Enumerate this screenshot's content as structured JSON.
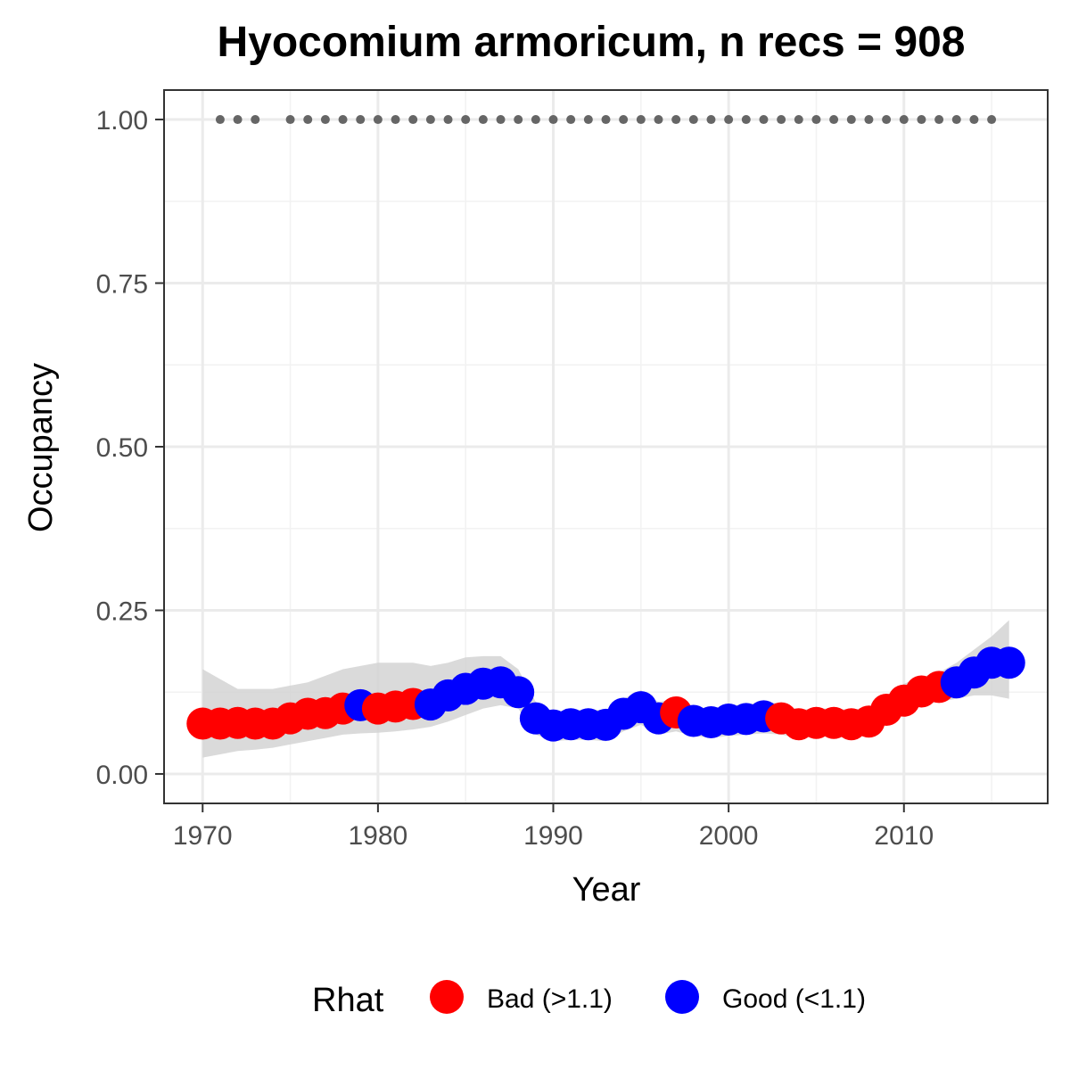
{
  "chart_data": {
    "type": "line",
    "title": "Hyocomium armoricum, n recs = 908",
    "xlabel": "Year",
    "ylabel": "Occupancy",
    "xlim": [
      1967.8,
      2018.2
    ],
    "ylim": [
      -0.045,
      1.045
    ],
    "x_ticks": [
      1970,
      1980,
      1990,
      2000,
      2010
    ],
    "x_tick_labels": [
      "1970",
      "1980",
      "1990",
      "2000",
      "2010"
    ],
    "y_ticks": [
      0,
      0.25,
      0.5,
      0.75,
      1.0
    ],
    "y_tick_labels": [
      "0.00",
      "0.25",
      "0.50",
      "0.75",
      "1.00"
    ],
    "grid": true,
    "legend": {
      "title": "Rhat",
      "position": "bottom",
      "entries": [
        {
          "label": "Bad (>1.1)",
          "color": "#ff0000"
        },
        {
          "label": "Good (<1.1)",
          "color": "#0000ff"
        }
      ]
    },
    "colors": {
      "Bad": "#ff0000",
      "Good": "#0000ff",
      "ribbon": "#d3d3d3",
      "record_dots": "#666666"
    },
    "series": [
      {
        "x": [
          1970,
          1971,
          1972,
          1973,
          1974,
          1975,
          1976,
          1977,
          1978,
          1979,
          1980,
          1981,
          1982,
          1983,
          1984,
          1985,
          1986,
          1987,
          1988,
          1989,
          1990,
          1991,
          1992,
          1993,
          1994,
          1995,
          1996,
          1997,
          1998,
          1999,
          2000,
          2001,
          2002,
          2003,
          2004,
          2005,
          2006,
          2007,
          2008,
          2009,
          2010,
          2011,
          2012,
          2013,
          2014,
          2015,
          2016
        ],
        "values": [
          0.077,
          0.077,
          0.078,
          0.077,
          0.077,
          0.085,
          0.092,
          0.093,
          0.1,
          0.105,
          0.1,
          0.103,
          0.107,
          0.106,
          0.12,
          0.13,
          0.138,
          0.14,
          0.125,
          0.085,
          0.074,
          0.076,
          0.076,
          0.075,
          0.092,
          0.102,
          0.085,
          0.094,
          0.081,
          0.079,
          0.083,
          0.084,
          0.088,
          0.085,
          0.076,
          0.078,
          0.078,
          0.076,
          0.08,
          0.098,
          0.112,
          0.126,
          0.133,
          0.14,
          0.155,
          0.17,
          0.17
        ],
        "rhat": [
          "Bad",
          "Bad",
          "Bad",
          "Bad",
          "Bad",
          "Bad",
          "Bad",
          "Bad",
          "Bad",
          "Good",
          "Bad",
          "Bad",
          "Bad",
          "Good",
          "Good",
          "Good",
          "Good",
          "Good",
          "Good",
          "Good",
          "Good",
          "Good",
          "Good",
          "Good",
          "Good",
          "Good",
          "Good",
          "Bad",
          "Good",
          "Good",
          "Good",
          "Good",
          "Good",
          "Bad",
          "Bad",
          "Bad",
          "Bad",
          "Bad",
          "Bad",
          "Bad",
          "Bad",
          "Bad",
          "Bad",
          "Good",
          "Good",
          "Good",
          "Good"
        ],
        "lower": [
          0.025,
          0.03,
          0.035,
          0.037,
          0.04,
          0.045,
          0.05,
          0.055,
          0.06,
          0.062,
          0.063,
          0.065,
          0.068,
          0.072,
          0.08,
          0.09,
          0.1,
          0.105,
          0.1,
          0.06,
          0.05,
          0.052,
          0.052,
          0.05,
          0.065,
          0.075,
          0.06,
          0.065,
          0.058,
          0.055,
          0.058,
          0.06,
          0.062,
          0.06,
          0.055,
          0.057,
          0.057,
          0.055,
          0.06,
          0.075,
          0.09,
          0.105,
          0.11,
          0.115,
          0.12,
          0.12,
          0.115
        ],
        "upper": [
          0.16,
          0.145,
          0.13,
          0.13,
          0.13,
          0.135,
          0.14,
          0.15,
          0.16,
          0.165,
          0.17,
          0.17,
          0.17,
          0.165,
          0.17,
          0.178,
          0.18,
          0.18,
          0.16,
          0.11,
          0.095,
          0.098,
          0.098,
          0.098,
          0.115,
          0.128,
          0.11,
          0.115,
          0.103,
          0.1,
          0.105,
          0.106,
          0.11,
          0.108,
          0.098,
          0.1,
          0.1,
          0.098,
          0.102,
          0.12,
          0.138,
          0.148,
          0.155,
          0.17,
          0.19,
          0.21,
          0.235
        ]
      }
    ],
    "records_at_1": [
      1971,
      1972,
      1973,
      1975,
      1976,
      1977,
      1978,
      1979,
      1980,
      1981,
      1982,
      1983,
      1984,
      1985,
      1986,
      1987,
      1988,
      1989,
      1990,
      1991,
      1992,
      1993,
      1994,
      1995,
      1996,
      1997,
      1998,
      1999,
      2000,
      2001,
      2002,
      2003,
      2004,
      2005,
      2006,
      2007,
      2008,
      2009,
      2010,
      2011,
      2012,
      2013,
      2014,
      2015
    ]
  }
}
